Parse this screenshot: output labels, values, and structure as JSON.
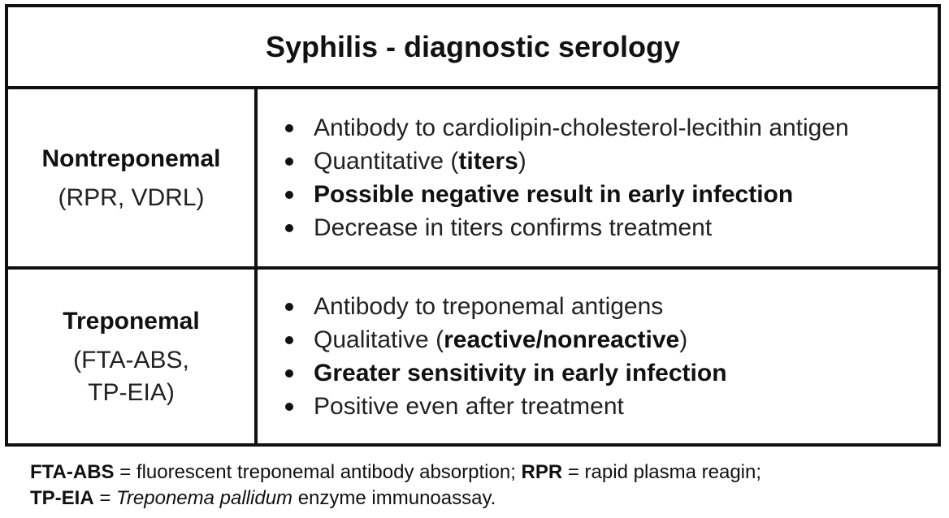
{
  "title": "Syphilis - diagnostic serology",
  "rows": [
    {
      "name": "Nontreponemal",
      "sub": "(RPR, VDRL)",
      "bullets": {
        "b1": "Antibody to cardiolipin-cholesterol-lecithin antigen",
        "b2_pre": "Quantitative (",
        "b2_bold": "titers",
        "b2_post": ")",
        "b3": "Possible negative result in early infection",
        "b4": "Decrease in titers confirms treatment"
      }
    },
    {
      "name": "Treponemal",
      "sub": "(FTA-ABS,\nTP-EIA)",
      "bullets": {
        "b1": "Antibody to treponemal antigens",
        "b2_pre": "Qualitative (",
        "b2_bold": "reactive/nonreactive",
        "b2_post": ")",
        "b3": "Greater sensitivity in early infection",
        "b4": "Positive even after treatment"
      }
    }
  ],
  "footnote": {
    "line1": {
      "abbr1": "FTA-ABS",
      "def1": " = fluorescent treponemal antibody absorption; ",
      "abbr2": "RPR",
      "def2": " = rapid plasma reagin;"
    },
    "line2": {
      "abbr": "TP-EIA",
      "eq": " = ",
      "italic": "Treponema pallidum",
      "rest": " enzyme immunoassay."
    }
  }
}
